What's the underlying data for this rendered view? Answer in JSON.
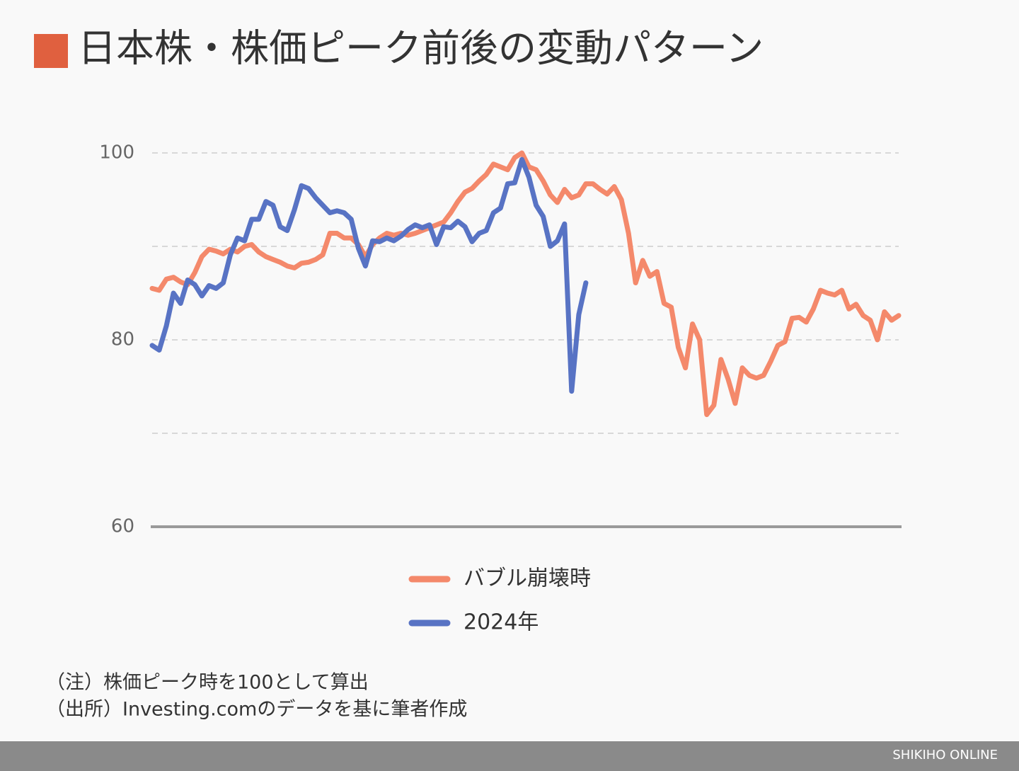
{
  "chart_data": {
    "type": "line",
    "title": "日本株・株価ピーク前後の変動パターン",
    "ylim": [
      60,
      100
    ],
    "yticks": [
      60,
      {
        "value": 70,
        "label": null
      },
      80,
      {
        "value": 90,
        "label": null
      },
      100
    ],
    "grid": true,
    "legend": "bottom",
    "series": [
      {
        "name": "バブル崩壊時",
        "color": "#f4896b",
        "values": [
          85.5,
          85.3,
          86.5,
          86.7,
          86.2,
          85.9,
          87.2,
          88.9,
          89.7,
          89.5,
          89.2,
          89.7,
          89.4,
          90.0,
          90.2,
          89.4,
          88.9,
          88.6,
          88.3,
          87.9,
          87.7,
          88.2,
          88.3,
          88.6,
          89.1,
          91.4,
          91.4,
          90.9,
          90.9,
          90.2,
          88.9,
          90.2,
          90.9,
          91.4,
          91.2,
          91.4,
          91.2,
          91.4,
          91.7,
          92.0,
          92.3,
          92.6,
          93.6,
          94.8,
          95.8,
          96.2,
          97.0,
          97.7,
          98.8,
          98.5,
          98.2,
          99.5,
          100,
          98.5,
          98.2,
          97.0,
          95.5,
          94.7,
          96.1,
          95.2,
          95.5,
          96.7,
          96.7,
          96.1,
          95.6,
          96.4,
          95.0,
          91.4,
          86.1,
          88.5,
          86.8,
          87.3,
          83.9,
          83.5,
          79.2,
          77.0,
          81.7,
          80.0,
          72.0,
          73.0,
          77.9,
          75.8,
          73.2,
          77.0,
          76.2,
          75.9,
          76.2,
          77.7,
          79.4,
          79.8,
          82.3,
          82.4,
          81.9,
          83.3,
          85.3,
          85.0,
          84.8,
          85.3,
          83.3,
          83.8,
          82.6,
          82.1,
          80.0,
          83.0,
          82.1,
          82.6
        ]
      },
      {
        "name": "2024年",
        "color": "#5873c4",
        "values": [
          79.4,
          78.9,
          81.5,
          85.0,
          83.9,
          86.4,
          85.9,
          84.7,
          85.8,
          85.5,
          86.1,
          89.1,
          90.9,
          90.6,
          92.9,
          92.9,
          94.8,
          94.4,
          92.1,
          91.7,
          93.9,
          96.5,
          96.2,
          95.2,
          94.4,
          93.6,
          93.8,
          93.6,
          92.9,
          89.8,
          87.9,
          90.6,
          90.5,
          90.9,
          90.6,
          91.1,
          91.8,
          92.3,
          92.0,
          92.3,
          90.2,
          92.1,
          92.0,
          92.7,
          92.1,
          90.5,
          91.4,
          91.7,
          93.6,
          94.1,
          96.7,
          96.8,
          99.3,
          97.4,
          94.4,
          93.2,
          90.0,
          90.6,
          92.4,
          74.5,
          82.7,
          86.1,
          null,
          null,
          null,
          null,
          null,
          null,
          null,
          null,
          null,
          null,
          null,
          null,
          null,
          null,
          null,
          null,
          null,
          null,
          null,
          null,
          null,
          null,
          null,
          null,
          null,
          null,
          null,
          null,
          null,
          null,
          null,
          null,
          null,
          null,
          null,
          null,
          null,
          null,
          null,
          null,
          null,
          null,
          null,
          null
        ]
      }
    ]
  },
  "notes": [
    "（注）株価ピーク時を100として算出",
    "（出所）Investing.comのデータを基に筆者作成"
  ],
  "footer": "SHIKIHO ONLINE"
}
